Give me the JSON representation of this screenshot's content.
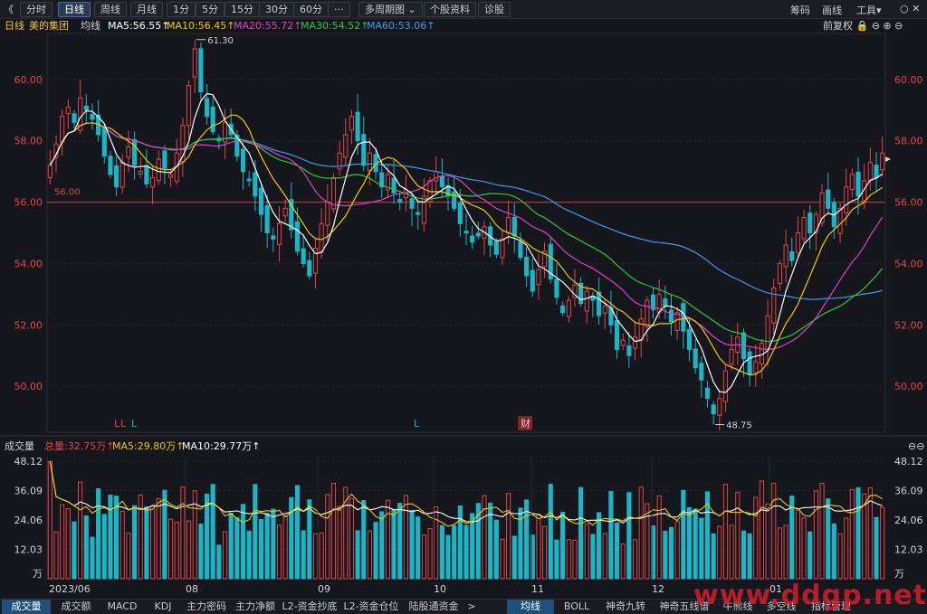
{
  "toolbar": {
    "back": "《",
    "periods": [
      "分时",
      "日线",
      "周线",
      "月线",
      "1分",
      "5分",
      "15分",
      "30分",
      "60分",
      "···",
      "多周期图 ⌄",
      "个股资料",
      "诊股"
    ],
    "active_period": "日线",
    "right": [
      "筹码",
      "画线",
      "工具▾"
    ],
    "window_icons": "○ ✕"
  },
  "main_indicator": {
    "period": "日线",
    "stock": "美的集团",
    "label": "均线",
    "ma": [
      {
        "text": "MA5:56.55↑",
        "color": "#ffffff"
      },
      {
        "text": "MA10:56.45↑",
        "color": "#f0c800"
      },
      {
        "text": "MA20:55.72↑",
        "color": "#e040c8"
      },
      {
        "text": "MA30:54.52↑",
        "color": "#27c93f"
      },
      {
        "text": "MA60:53.06↑",
        "color": "#3a9bf2"
      }
    ],
    "right_controls": "前复权 🔒 ⊖ ⊕ ⊖"
  },
  "price_axis": {
    "ticks": [
      "60.00",
      "58.00",
      "56.00",
      "54.00",
      "52.00",
      "50.00"
    ]
  },
  "annotations": {
    "high": "61.30",
    "low": "48.75",
    "line_level": "56.00",
    "caizhi": "财",
    "l_markers": [
      "L",
      "L",
      "L",
      "L"
    ]
  },
  "volume_indicator": {
    "label": "成交量",
    "total": "总量:32.75万↑",
    "ma5": "MA5:29.80万↑",
    "ma10": "MA10:29.77万↑"
  },
  "volume_axis": {
    "ticks": [
      "48.12",
      "36.09",
      "24.06",
      "12.03"
    ],
    "unit": "万"
  },
  "x_axis": {
    "labels": [
      "2023/06",
      "08",
      "09",
      "10",
      "11",
      "12",
      "01"
    ]
  },
  "bottom_tabs_left": [
    "成交量",
    "成交额",
    "MACD",
    "KDJ",
    "主力密码",
    "主力净额",
    "L2-资金抄底",
    "L2-资金仓位",
    "陆股通资金",
    ">"
  ],
  "bottom_tabs_right": [
    "均线",
    "BOLL",
    "神奇九转",
    "神奇五线谱",
    "牛熊线",
    "多空线",
    "指标管理"
  ],
  "watermark": "www.ddgp.net",
  "colors": {
    "up": "#e0454a",
    "down": "#19b6c8",
    "ma5": "#ffffff",
    "ma10": "#f0c800",
    "ma20": "#e040c8",
    "ma30": "#27c93f",
    "ma60": "#3a9bf2"
  },
  "chart_data": {
    "type": "candlestick",
    "ylim": [
      48.5,
      61.5
    ],
    "date_start": "2023/06",
    "closes": [
      57.2,
      57.9,
      58.8,
      59.1,
      58.6,
      59.4,
      59.0,
      58.7,
      58.2,
      57.5,
      56.9,
      56.5,
      57.3,
      57.8,
      57.2,
      57.0,
      56.6,
      56.8,
      57.4,
      57.1,
      56.9,
      57.6,
      58.5,
      59.8,
      61.0,
      59.6,
      58.8,
      58.3,
      58.0,
      58.6,
      58.2,
      57.5,
      57.0,
      56.7,
      56.2,
      55.6,
      55.0,
      54.8,
      55.3,
      55.8,
      55.1,
      54.4,
      54.0,
      53.6,
      54.5,
      55.3,
      56.0,
      56.8,
      57.6,
      58.2,
      58.8,
      58.0,
      57.2,
      57.6,
      57.0,
      56.5,
      56.9,
      56.3,
      56.0,
      56.4,
      55.8,
      55.6,
      56.2,
      56.7,
      57.0,
      56.5,
      56.2,
      55.8,
      55.3,
      55.0,
      54.7,
      54.9,
      55.2,
      54.6,
      54.3,
      54.8,
      55.5,
      54.9,
      54.2,
      53.6,
      53.1,
      53.8,
      54.4,
      53.5,
      52.9,
      52.4,
      52.8,
      53.3,
      52.7,
      53.1,
      52.8,
      52.3,
      52.6,
      52.0,
      51.2,
      51.5,
      51.0,
      51.6,
      52.2,
      52.8,
      52.5,
      53.0,
      52.6,
      52.1,
      52.4,
      51.8,
      51.2,
      50.6,
      50.2,
      49.6,
      49.1,
      49.6,
      50.5,
      51.2,
      51.6,
      50.9,
      50.4,
      50.8,
      51.4,
      52.3,
      53.2,
      54.0,
      54.6,
      54.1,
      55.0,
      55.5,
      55.0,
      55.6,
      56.3,
      55.8,
      55.2,
      55.8,
      56.5,
      56.9,
      56.2,
      56.7,
      57.3,
      56.8,
      57.6
    ],
    "ma_series": [
      "MA5",
      "MA10",
      "MA20",
      "MA30",
      "MA60"
    ],
    "high": 61.3,
    "low": 48.75,
    "volume_ylim": [
      0,
      50
    ],
    "volume_unit": "万"
  }
}
